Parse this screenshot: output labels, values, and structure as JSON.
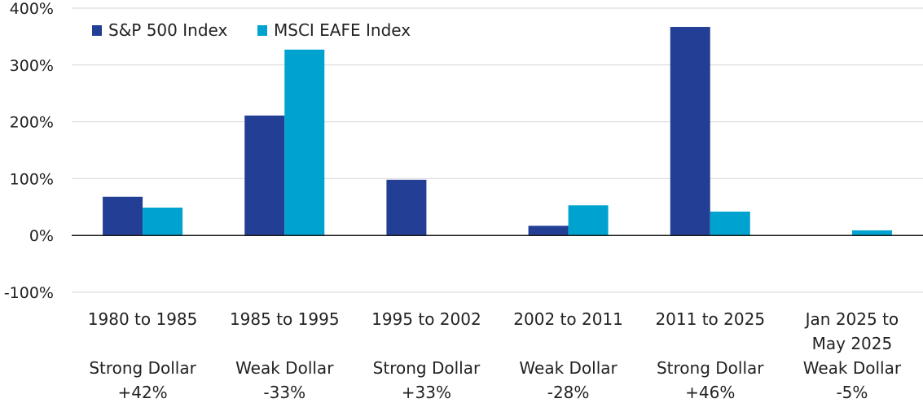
{
  "chart_data": {
    "type": "bar",
    "title": "",
    "xlabel": "",
    "ylabel": "",
    "ylim": [
      -100,
      400
    ],
    "yticks": [
      -100,
      0,
      100,
      200,
      300,
      400
    ],
    "ytick_labels": [
      "-100%",
      "0%",
      "100%",
      "200%",
      "300%",
      "400%"
    ],
    "grid": true,
    "legend_position": "top-left",
    "categories": [
      {
        "period": [
          "1980 to 1985"
        ],
        "regime": "Strong Dollar",
        "change": "+42%"
      },
      {
        "period": [
          "1985 to 1995"
        ],
        "regime": "Weak Dollar",
        "change": "-33%"
      },
      {
        "period": [
          "1995 to 2002"
        ],
        "regime": "Strong Dollar",
        "change": "+33%"
      },
      {
        "period": [
          "2002 to 2011"
        ],
        "regime": "Weak Dollar",
        "change": "-28%"
      },
      {
        "period": [
          "2011 to 2025"
        ],
        "regime": "Strong Dollar",
        "change": "+46%"
      },
      {
        "period": [
          "Jan 2025 to",
          "May 2025"
        ],
        "regime": "Weak Dollar",
        "change": "-5%"
      }
    ],
    "series": [
      {
        "name": "S&P 500 Index",
        "color": "#233f95",
        "values": [
          68,
          211,
          98,
          17,
          367,
          -1
        ]
      },
      {
        "name": "MSCI EAFE Index",
        "color": "#00a3cf",
        "values": [
          49,
          327,
          -1,
          53,
          42,
          9
        ]
      }
    ]
  }
}
